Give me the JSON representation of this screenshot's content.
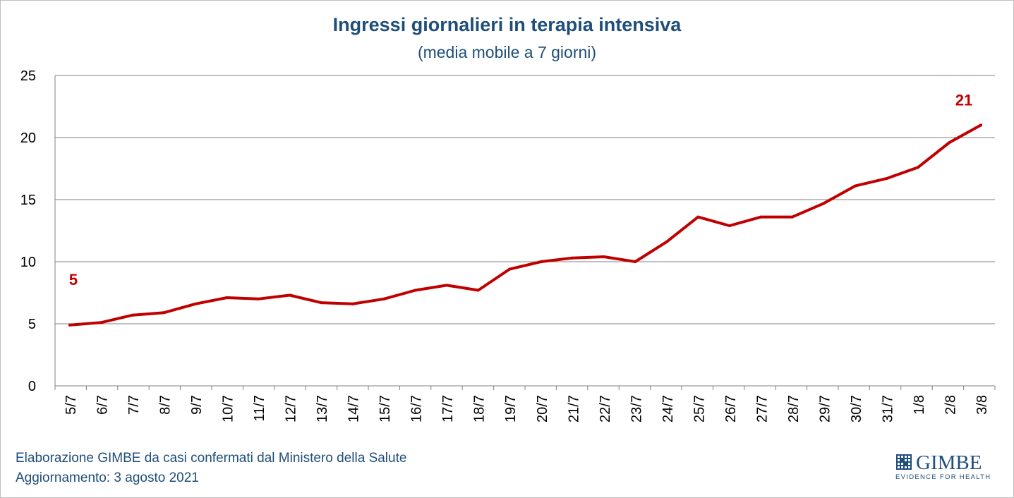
{
  "chart_data": {
    "type": "line",
    "title": "Ingressi giornalieri in terapia intensiva",
    "subtitle": "(media mobile a 7 giorni)",
    "xlabel": "",
    "ylabel": "",
    "ylim": [
      0,
      25
    ],
    "yticks": [
      0,
      5,
      10,
      15,
      20,
      25
    ],
    "grid": true,
    "categories": [
      "5/7",
      "6/7",
      "7/7",
      "8/7",
      "9/7",
      "10/7",
      "11/7",
      "12/7",
      "13/7",
      "14/7",
      "15/7",
      "16/7",
      "17/7",
      "18/7",
      "19/7",
      "20/7",
      "21/7",
      "22/7",
      "23/7",
      "24/7",
      "25/7",
      "26/7",
      "27/7",
      "28/7",
      "29/7",
      "30/7",
      "31/7",
      "1/8",
      "2/8",
      "3/8"
    ],
    "series": [
      {
        "name": "Ingressi giornalieri in terapia intensiva",
        "color": "#c00000",
        "values": [
          4.9,
          5.1,
          5.7,
          5.9,
          6.6,
          7.1,
          7.0,
          7.3,
          6.7,
          6.6,
          7.0,
          7.7,
          8.1,
          7.7,
          9.4,
          10.0,
          10.3,
          10.4,
          10.0,
          11.6,
          13.6,
          12.9,
          13.6,
          13.6,
          14.7,
          16.1,
          16.7,
          17.6,
          19.6,
          21.0
        ]
      }
    ],
    "annotations": [
      {
        "index": 0,
        "text": "5",
        "color": "#c00000"
      },
      {
        "index": 29,
        "text": "21",
        "color": "#c00000"
      }
    ]
  },
  "footer": {
    "source": "Elaborazione GIMBE da casi confermati dal Ministero della Salute",
    "updated": "Aggiornamento: 3 agosto 2021"
  },
  "logo": {
    "name": "GIMBE",
    "tagline": "EVIDENCE FOR HEALTH",
    "icon": "gimbe-grid-icon"
  },
  "colors": {
    "title": "#1f4e79",
    "line": "#c00000",
    "grid": "#808080"
  }
}
